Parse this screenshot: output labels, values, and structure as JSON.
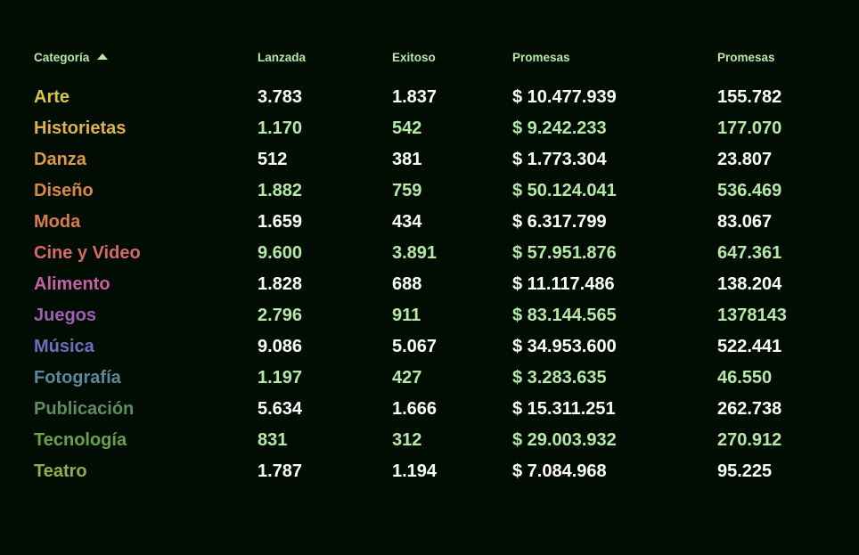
{
  "colors": {
    "background": "#010d03",
    "header_text": "#b6e8a8",
    "value_white": "#ffffff",
    "value_green": "#b6e8a8"
  },
  "header": {
    "category_label": "Categoría",
    "sort_icon": "triangle-up-icon",
    "launched_label": "Lanzada",
    "successful_label": "Exitoso",
    "pledged_label": "Promesas",
    "backers_label": "Promesas"
  },
  "rows": [
    {
      "category": "Arte",
      "category_color": "#dcc24e",
      "launched": "3.783",
      "successful": "1.837",
      "pledged": "$ 10.477.939",
      "backers": "155.782"
    },
    {
      "category": "Historietas",
      "category_color": "#ddb24f",
      "launched": "1.170",
      "successful": "542",
      "pledged": "$ 9.242.233",
      "backers": "177.070"
    },
    {
      "category": "Danza",
      "category_color": "#dd9a4b",
      "launched": "512",
      "successful": "381",
      "pledged": "$ 1.773.304",
      "backers": "23.807"
    },
    {
      "category": "Diseño",
      "category_color": "#d8864a",
      "launched": "1.882",
      "successful": "759",
      "pledged": "$ 50.124.041",
      "backers": "536.469"
    },
    {
      "category": "Moda",
      "category_color": "#d67d4e",
      "launched": "1.659",
      "successful": "434",
      "pledged": "$ 6.317.799",
      "backers": "83.067"
    },
    {
      "category": "Cine y Video",
      "category_color": "#d56a67",
      "launched": "9.600",
      "successful": "3.891",
      "pledged": "$ 57.951.876",
      "backers": "647.361"
    },
    {
      "category": "Alimento",
      "category_color": "#c560a4",
      "launched": "1.828",
      "successful": "688",
      "pledged": "$ 11.117.486",
      "backers": "138.204"
    },
    {
      "category": "Juegos",
      "category_color": "#a15fb3",
      "launched": "2.796",
      "successful": "911",
      "pledged": "$ 83.144.565",
      "backers": "1378143"
    },
    {
      "category": "Música",
      "category_color": "#6a70b9",
      "launched": "9.086",
      "successful": "5.067",
      "pledged": "$ 34.953.600",
      "backers": "522.441"
    },
    {
      "category": "Fotografía",
      "category_color": "#5c889a",
      "launched": "1.197",
      "successful": "427",
      "pledged": "$ 3.283.635",
      "backers": "46.550"
    },
    {
      "category": "Publicación",
      "category_color": "#5c8e5f",
      "launched": "5.634",
      "successful": "1.666",
      "pledged": "$ 15.311.251",
      "backers": "262.738"
    },
    {
      "category": "Tecnología",
      "category_color": "#6ba04b",
      "launched": "831",
      "successful": "312",
      "pledged": "$ 29.003.932",
      "backers": "270.912"
    },
    {
      "category": "Teatro",
      "category_color": "#8eb04a",
      "launched": "1.787",
      "successful": "1.194",
      "pledged": "$ 7.084.968",
      "backers": "95.225"
    }
  ]
}
